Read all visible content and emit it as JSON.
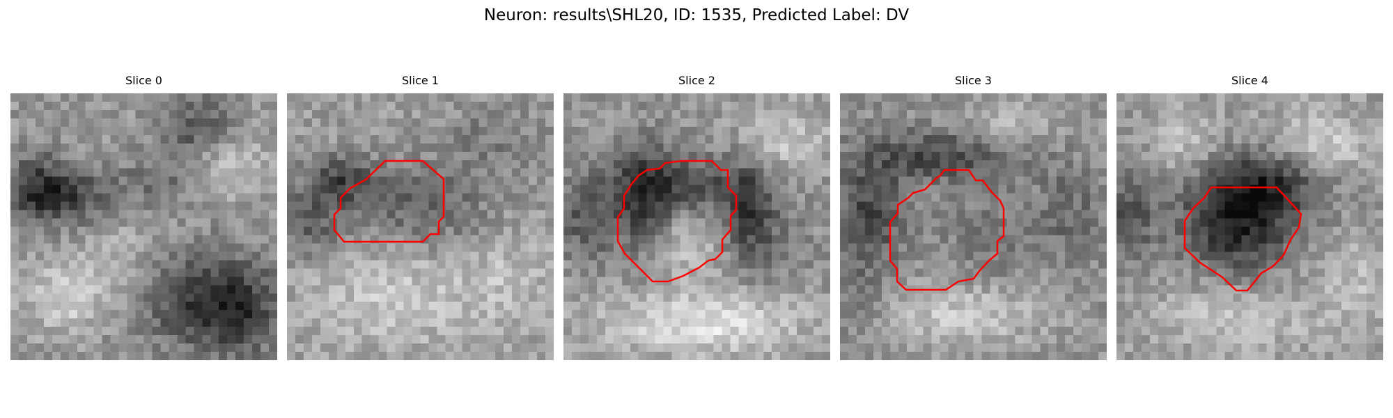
{
  "figure": {
    "title": "Neuron: results\\SHL20, ID: 1535, Predicted Label: DV",
    "contour_color": "#ff0000",
    "colormap": "gray"
  },
  "panels": [
    {
      "title": "Slice 0",
      "has_contour": false
    },
    {
      "title": "Slice 1",
      "has_contour": true
    },
    {
      "title": "Slice 2",
      "has_contour": true
    },
    {
      "title": "Slice 3",
      "has_contour": true
    },
    {
      "title": "Slice 4",
      "has_contour": true
    }
  ]
}
